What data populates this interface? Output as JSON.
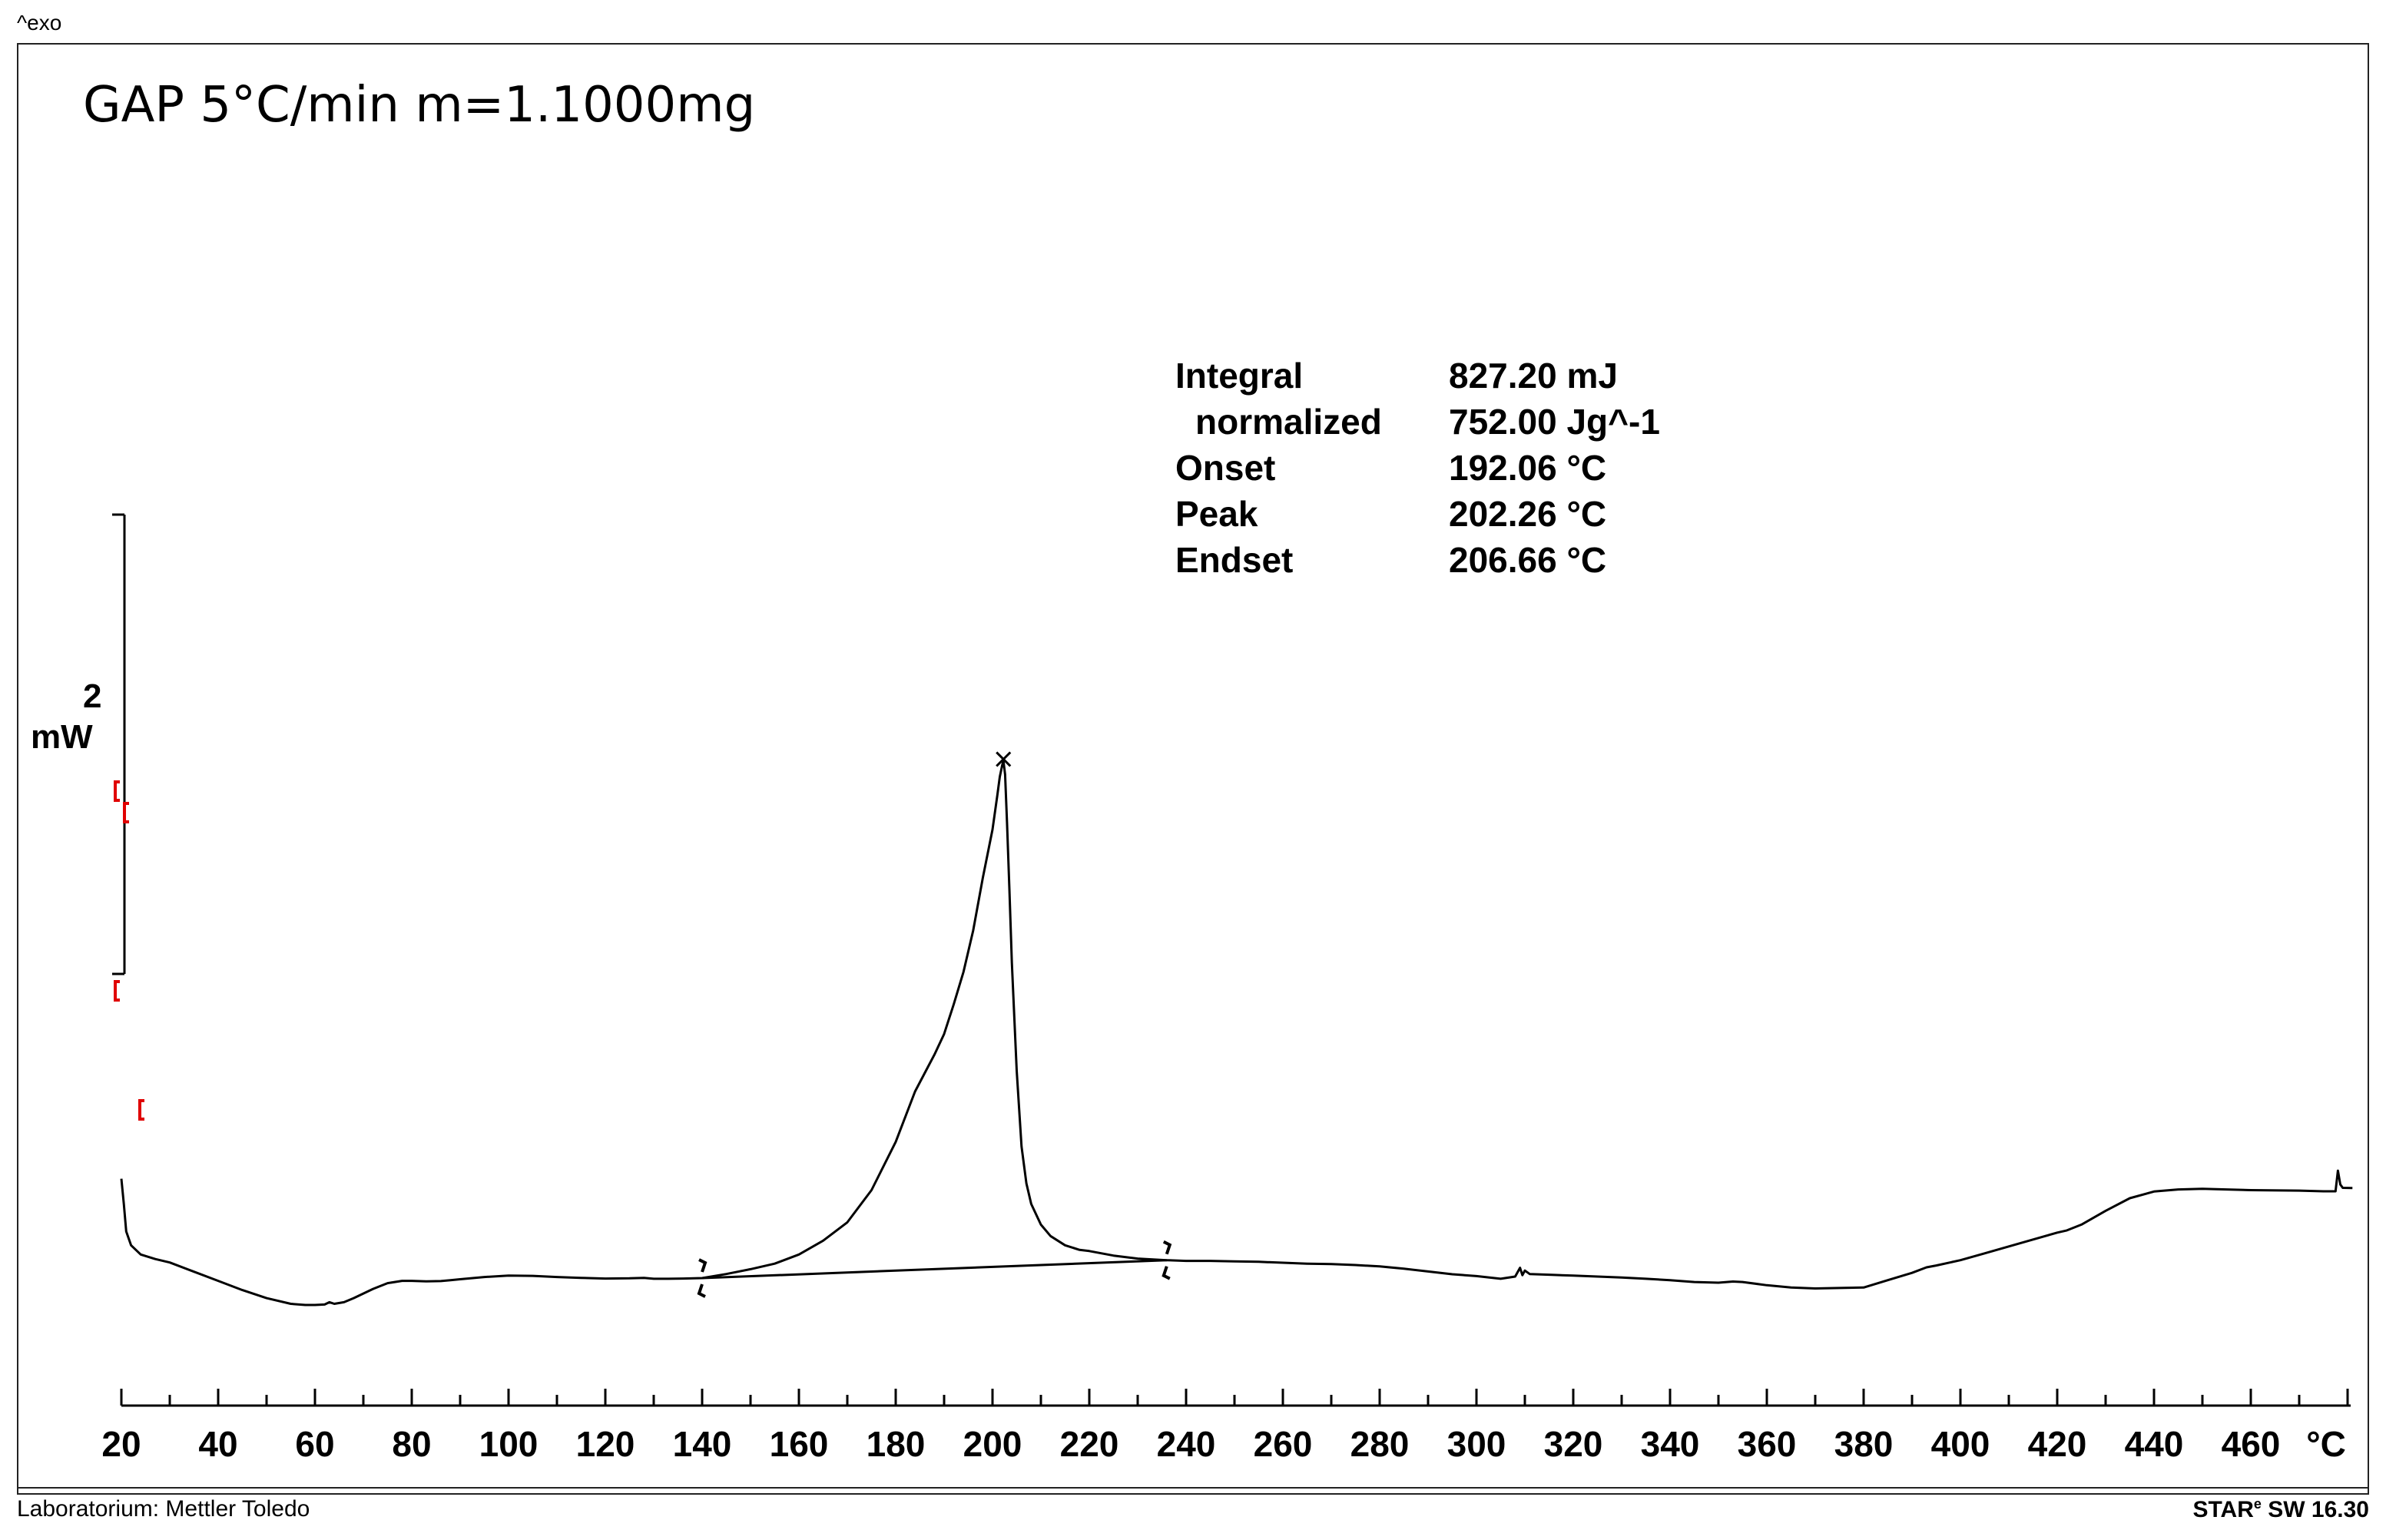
{
  "header": {
    "exo_label": "^exo"
  },
  "chart_data": {
    "type": "line",
    "title": "GAP 5°C/min m=1.1000mg",
    "xlabel": "°C",
    "x_unit": "°C",
    "xlim": [
      20,
      480
    ],
    "x_ticks": [
      "20",
      "40",
      "60",
      "80",
      "100",
      "120",
      "140",
      "160",
      "180",
      "200",
      "220",
      "240",
      "260",
      "280",
      "300",
      "320",
      "340",
      "360",
      "380",
      "400",
      "420",
      "440",
      "460"
    ],
    "scale_bar": {
      "value": "2",
      "unit": "mW"
    },
    "series": [
      {
        "name": "DSC heat flow",
        "x": [
          20,
          20.5,
          21,
          22,
          24,
          27,
          30,
          35,
          40,
          45,
          50,
          55,
          58,
          60,
          62,
          63,
          64,
          66,
          68,
          70,
          72,
          75,
          78,
          80,
          83,
          86,
          88,
          90,
          95,
          100,
          105,
          110,
          115,
          120,
          125,
          128,
          130,
          133,
          136,
          140,
          145,
          150,
          155,
          160,
          165,
          170,
          175,
          180,
          184,
          186,
          188,
          190,
          192,
          194,
          196,
          198,
          200,
          201,
          201.5,
          202,
          202.26,
          202.6,
          203,
          203.5,
          204,
          205,
          206,
          207,
          208,
          210,
          212,
          215,
          218,
          220,
          225,
          230,
          236,
          240,
          245,
          250,
          255,
          260,
          265,
          270,
          275,
          280,
          285,
          290,
          295,
          300,
          305,
          308,
          309,
          309.5,
          310,
          311,
          315,
          320,
          325,
          330,
          335,
          340,
          345,
          350,
          353,
          355,
          360,
          365,
          370,
          375,
          380,
          385,
          390,
          393,
          395,
          400,
          405,
          410,
          415,
          420,
          422,
          425,
          430,
          435,
          440,
          445,
          450,
          455,
          460,
          470,
          475,
          477.5,
          478,
          478.5,
          479,
          481
        ],
        "y": [
          5.8,
          4.7,
          3.5,
          2.9,
          2.5,
          2.3,
          2.15,
          1.75,
          1.35,
          0.95,
          0.6,
          0.35,
          0.3,
          0.3,
          0.32,
          0.42,
          0.35,
          0.42,
          0.6,
          0.8,
          1.0,
          1.25,
          1.35,
          1.35,
          1.33,
          1.34,
          1.38,
          1.42,
          1.52,
          1.58,
          1.57,
          1.52,
          1.48,
          1.45,
          1.46,
          1.48,
          1.44,
          1.44,
          1.45,
          1.47,
          1.65,
          1.86,
          2.1,
          2.5,
          3.1,
          3.9,
          5.3,
          7.4,
          9.6,
          10.4,
          11.2,
          12.1,
          13.4,
          14.8,
          16.6,
          18.9,
          21.0,
          22.5,
          23.3,
          23.8,
          24.0,
          23.4,
          21.3,
          18.4,
          15.2,
          10.5,
          7.2,
          5.6,
          4.7,
          3.8,
          3.3,
          2.9,
          2.7,
          2.65,
          2.45,
          2.32,
          2.25,
          2.22,
          2.22,
          2.2,
          2.18,
          2.14,
          2.1,
          2.08,
          2.04,
          1.98,
          1.88,
          1.76,
          1.64,
          1.56,
          1.44,
          1.54,
          1.92,
          1.6,
          1.8,
          1.65,
          1.62,
          1.58,
          1.54,
          1.5,
          1.44,
          1.38,
          1.3,
          1.27,
          1.32,
          1.3,
          1.16,
          1.06,
          1.02,
          1.04,
          1.06,
          1.38,
          1.7,
          1.94,
          2.02,
          2.25,
          2.55,
          2.85,
          3.15,
          3.45,
          3.55,
          3.8,
          4.4,
          4.95,
          5.24,
          5.33,
          5.36,
          5.33,
          5.3,
          5.28,
          5.25,
          5.25,
          6.15,
          5.55,
          5.4,
          5.39
        ]
      },
      {
        "name": "Integration baseline",
        "x": [
          140,
          236
        ],
        "y": [
          1.47,
          2.25
        ]
      }
    ],
    "annotations": [
      {
        "label": "peak marker",
        "x": 202.26,
        "y": 24.0,
        "marker": "x"
      },
      {
        "label": "integration limit",
        "x": 140
      },
      {
        "label": "integration limit",
        "x": 236
      }
    ],
    "results": [
      {
        "label": "Integral",
        "value": "827.20 mJ"
      },
      {
        "label": "normalized",
        "value": "752.00 Jg^-1"
      },
      {
        "label": "Onset",
        "value": "192.06 °C"
      },
      {
        "label": "Peak",
        "value": "202.26 °C"
      },
      {
        "label": "Endset",
        "value": "206.66 °C"
      }
    ]
  },
  "footer": {
    "lab": "Laboratorium: Mettler Toledo",
    "software": "STAR",
    "software_sup": "e",
    "software_version": " SW 16.30"
  }
}
